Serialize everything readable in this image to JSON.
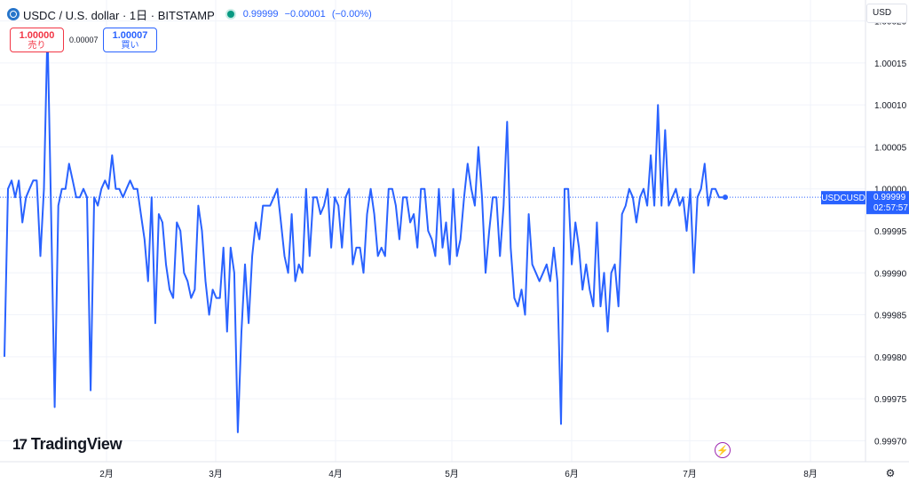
{
  "header": {
    "symbol_title": "USDC / U.S. dollar · 1日 · BITSTAMP",
    "last_price": "0.99999",
    "change": "−0.00001",
    "change_pct": "(−0.00%)"
  },
  "trade": {
    "sell_price": "1.00000",
    "sell_label": "売り",
    "spread": "0.00007",
    "buy_price": "1.00007",
    "buy_label": "買い"
  },
  "currency_selector": "USD",
  "brand": {
    "logo_glyph": "17",
    "name": "TradingView"
  },
  "icons": {
    "coin": "usdc-coin-icon",
    "status": "market-status-dot-icon",
    "bolt": "lightning-icon",
    "settings": "gear-icon"
  },
  "colors": {
    "line": "#2962ff",
    "sell": "#f23645",
    "buy": "#2962ff",
    "status": "#089981",
    "bolt": "#9c27b0"
  },
  "chart_data": {
    "type": "line",
    "x_tick_labels": [
      "2月",
      "3月",
      "4月",
      "5月",
      "6月",
      "7月",
      "8月"
    ],
    "y_tick_labels": [
      "1.00020",
      "1.00015",
      "1.00010",
      "1.00005",
      "1.00000",
      "0.99995",
      "0.99990",
      "0.99985",
      "0.99980",
      "0.99975",
      "0.99970"
    ],
    "ylim": [
      0.999675,
      1.000225
    ],
    "price_line_label": "USDCUSD",
    "price_line_value": 0.99999,
    "price_line_value_text": "0.99999",
    "countdown": "02:57:57",
    "grid": true,
    "x_date_range": [
      "2024-01-01",
      "2024-07-12"
    ],
    "series": [
      {
        "values": [
          0.9998,
          1.0,
          1.00001,
          0.99999,
          1.00001,
          0.99996,
          0.99999,
          1.0,
          1.00001,
          1.00001,
          0.99992,
          1.0,
          1.00019,
          0.99997,
          0.99974,
          0.99998,
          1.0,
          1.0,
          1.00003,
          1.00001,
          0.99999,
          0.99999,
          1.0,
          0.99999,
          0.99976,
          0.99999,
          0.99998,
          1.0,
          1.00001,
          1.0,
          1.00004,
          1.0,
          1.0,
          0.99999,
          1.0,
          1.00001,
          1.0,
          1.0,
          0.99997,
          0.99994,
          0.99989,
          0.99999,
          0.99984,
          0.99997,
          0.99996,
          0.99991,
          0.99988,
          0.99987,
          0.99996,
          0.99995,
          0.9999,
          0.99989,
          0.99987,
          0.99988,
          0.99998,
          0.99995,
          0.99989,
          0.99985,
          0.99988,
          0.99987,
          0.99987,
          0.99993,
          0.99983,
          0.99993,
          0.9999,
          0.99971,
          0.99983,
          0.99991,
          0.99984,
          0.99992,
          0.99996,
          0.99994,
          0.99998,
          0.99998,
          0.99998,
          0.99999,
          1.0,
          0.99996,
          0.99992,
          0.9999,
          0.99997,
          0.99989,
          0.99991,
          0.9999,
          1.0,
          0.99992,
          0.99999,
          0.99999,
          0.99997,
          0.99998,
          1.0,
          0.99993,
          0.99999,
          0.99998,
          0.99993,
          0.99999,
          1.0,
          0.99991,
          0.99993,
          0.99993,
          0.9999,
          0.99997,
          1.0,
          0.99997,
          0.99992,
          0.99993,
          0.99992,
          1.0,
          1.0,
          0.99998,
          0.99994,
          0.99999,
          0.99999,
          0.99996,
          0.99997,
          0.99993,
          1.0,
          1.0,
          0.99995,
          0.99994,
          0.99992,
          1.0,
          0.99993,
          0.99996,
          0.99991,
          1.0,
          0.99992,
          0.99994,
          0.99999,
          1.00003,
          1.0,
          0.99998,
          1.00005,
          0.99999,
          0.9999,
          0.99995,
          0.99999,
          0.99999,
          0.99992,
          0.99998,
          1.00008,
          0.99993,
          0.99987,
          0.99986,
          0.99988,
          0.99985,
          0.99997,
          0.99991,
          0.9999,
          0.99989,
          0.9999,
          0.99991,
          0.99989,
          0.99993,
          0.99989,
          0.99972,
          1.0,
          1.0,
          0.99991,
          0.99996,
          0.99993,
          0.99988,
          0.99991,
          0.99988,
          0.99986,
          0.99996,
          0.99986,
          0.9999,
          0.99983,
          0.9999,
          0.99991,
          0.99986,
          0.99997,
          0.99998,
          1.0,
          0.99999,
          0.99996,
          0.99999,
          1.0,
          0.99998,
          1.00004,
          0.99998,
          1.0001,
          0.99998,
          1.00007,
          0.99998,
          0.99999,
          1.0,
          0.99998,
          0.99999,
          0.99995,
          1.0,
          0.9999,
          0.99999,
          1.0,
          1.00003,
          0.99998,
          1.0,
          1.0,
          0.99999,
          0.99999
        ]
      }
    ]
  }
}
